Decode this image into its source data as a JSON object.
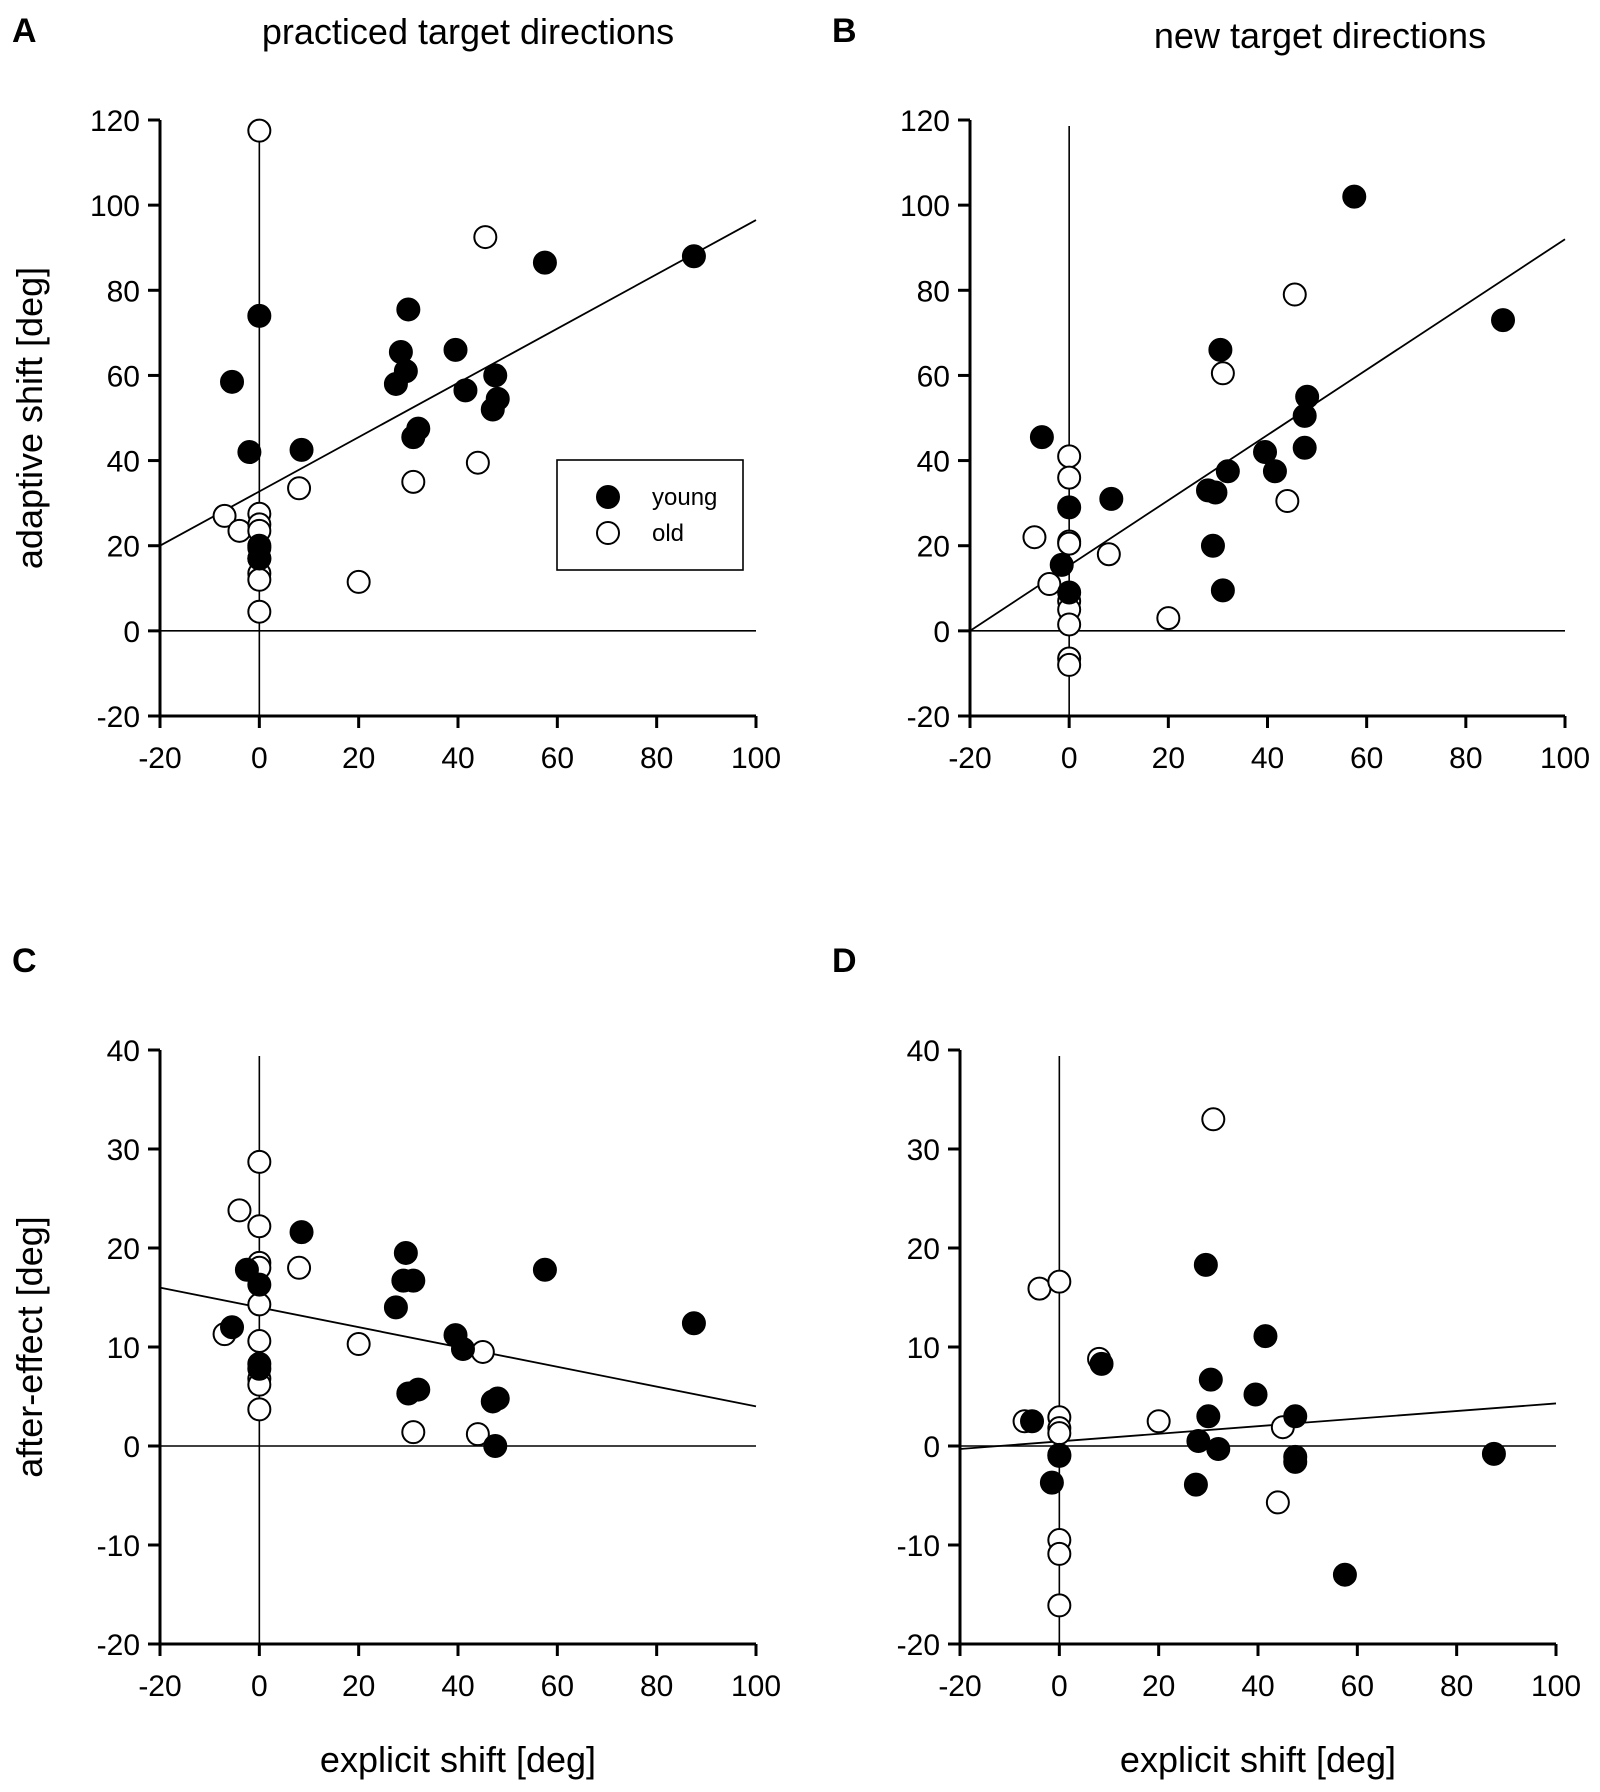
{
  "chart_data": [
    {
      "panel": "A",
      "type": "scatter",
      "title": "practiced target directions",
      "xlabel": "",
      "ylabel": "adaptive shift [deg]",
      "xlim": [
        -20,
        100
      ],
      "ylim": [
        -20,
        120
      ],
      "xticks": [
        -20,
        0,
        20,
        40,
        60,
        80,
        100
      ],
      "yticks": [
        -20,
        0,
        20,
        40,
        60,
        80,
        100,
        120
      ],
      "legend": {
        "position": "right-middle",
        "entries": [
          {
            "name": "young",
            "style": "filled"
          },
          {
            "name": "old",
            "style": "open"
          }
        ]
      },
      "fit_line": {
        "x": [
          -20,
          100
        ],
        "y": [
          20,
          96.5
        ]
      },
      "series": [
        {
          "name": "young",
          "points": [
            [
              -5.5,
              58.5
            ],
            [
              0,
              74
            ],
            [
              -2,
              42
            ],
            [
              8.5,
              42.5
            ],
            [
              28.5,
              65.5
            ],
            [
              30,
              75.5
            ],
            [
              29.5,
              61
            ],
            [
              27.5,
              58
            ],
            [
              31,
              45.5
            ],
            [
              32,
              47.5
            ],
            [
              39.5,
              66
            ],
            [
              41.5,
              56.5
            ],
            [
              47.5,
              60
            ],
            [
              48,
              54.5
            ],
            [
              47,
              52
            ],
            [
              57.5,
              86.5
            ],
            [
              87.5,
              88
            ],
            [
              0,
              20
            ],
            [
              0,
              17
            ]
          ]
        },
        {
          "name": "old",
          "points": [
            [
              0,
              117.5
            ],
            [
              -7,
              27
            ],
            [
              -4,
              23.5
            ],
            [
              0,
              27.5
            ],
            [
              0,
              25
            ],
            [
              0,
              23.5
            ],
            [
              0,
              19.5
            ],
            [
              0,
              17
            ],
            [
              0,
              13.5
            ],
            [
              0,
              12
            ],
            [
              0,
              4.5
            ],
            [
              8,
              33.5
            ],
            [
              20,
              11.5
            ],
            [
              31,
              35
            ],
            [
              44,
              39.5
            ],
            [
              45.5,
              92.5
            ]
          ]
        }
      ]
    },
    {
      "panel": "B",
      "type": "scatter",
      "title": "new target directions",
      "xlabel": "",
      "ylabel": "",
      "xlim": [
        -20,
        100
      ],
      "ylim": [
        -20,
        120
      ],
      "xticks": [
        -20,
        0,
        20,
        40,
        60,
        80,
        100
      ],
      "yticks": [
        -20,
        0,
        20,
        40,
        60,
        80,
        100,
        120
      ],
      "fit_line": {
        "x": [
          -20,
          100
        ],
        "y": [
          0,
          92
        ]
      },
      "series": [
        {
          "name": "young",
          "points": [
            [
              -5.5,
              45.5
            ],
            [
              0,
              29
            ],
            [
              -1.5,
              15.5
            ],
            [
              0,
              9
            ],
            [
              8.5,
              31
            ],
            [
              28,
              33
            ],
            [
              29.5,
              32.5
            ],
            [
              30.5,
              66
            ],
            [
              29,
              20
            ],
            [
              31,
              9.5
            ],
            [
              32,
              37.5
            ],
            [
              39.5,
              42
            ],
            [
              41.5,
              37.5
            ],
            [
              47.5,
              50.5
            ],
            [
              48,
              55
            ],
            [
              47.5,
              43
            ],
            [
              57.5,
              102
            ],
            [
              87.5,
              73
            ]
          ]
        },
        {
          "name": "old",
          "points": [
            [
              -7,
              22
            ],
            [
              -4,
              11
            ],
            [
              0,
              41
            ],
            [
              0,
              36
            ],
            [
              0,
              21
            ],
            [
              0,
              20.5
            ],
            [
              0,
              7
            ],
            [
              0,
              5
            ],
            [
              0,
              1.5
            ],
            [
              0,
              -6.5
            ],
            [
              0,
              -8
            ],
            [
              8,
              18
            ],
            [
              20,
              3
            ],
            [
              31,
              60.5
            ],
            [
              44,
              30.5
            ],
            [
              45.5,
              79
            ]
          ]
        }
      ]
    },
    {
      "panel": "C",
      "type": "scatter",
      "title": "",
      "xlabel": "explicit shift [deg]",
      "ylabel": "after-effect [deg]",
      "xlim": [
        -20,
        100
      ],
      "ylim": [
        -20,
        40
      ],
      "xticks": [
        -20,
        0,
        20,
        40,
        60,
        80,
        100
      ],
      "yticks": [
        -20,
        -10,
        0,
        10,
        20,
        30,
        40
      ],
      "fit_line": {
        "x": [
          -20,
          100
        ],
        "y": [
          16,
          4
        ]
      },
      "series": [
        {
          "name": "young",
          "points": [
            [
              -5.5,
              12
            ],
            [
              -2.5,
              17.8
            ],
            [
              0,
              16.3
            ],
            [
              0,
              8.3
            ],
            [
              0,
              7.8
            ],
            [
              8.5,
              21.6
            ],
            [
              29.5,
              19.5
            ],
            [
              29,
              16.7
            ],
            [
              31,
              16.7
            ],
            [
              27.5,
              14
            ],
            [
              30,
              5.3
            ],
            [
              32,
              5.7
            ],
            [
              39.5,
              11.2
            ],
            [
              41,
              9.8
            ],
            [
              47,
              4.5
            ],
            [
              48,
              4.8
            ],
            [
              47.5,
              0
            ],
            [
              57.5,
              17.8
            ],
            [
              87.5,
              12.4
            ]
          ]
        },
        {
          "name": "old",
          "points": [
            [
              -7,
              11.3
            ],
            [
              -4,
              23.8
            ],
            [
              0,
              28.7
            ],
            [
              0,
              22.2
            ],
            [
              0,
              18.5
            ],
            [
              0,
              18
            ],
            [
              0,
              14.3
            ],
            [
              0,
              10.6
            ],
            [
              0,
              6.8
            ],
            [
              0,
              6.2
            ],
            [
              0,
              3.7
            ],
            [
              8,
              18
            ],
            [
              20,
              10.3
            ],
            [
              31,
              1.4
            ],
            [
              44,
              1.2
            ],
            [
              45,
              9.5
            ]
          ]
        }
      ]
    },
    {
      "panel": "D",
      "type": "scatter",
      "title": "",
      "xlabel": "explicit shift [deg]",
      "ylabel": "",
      "xlim": [
        -20,
        100
      ],
      "ylim": [
        -20,
        40
      ],
      "xticks": [
        -20,
        0,
        20,
        40,
        60,
        80,
        100
      ],
      "yticks": [
        -20,
        -10,
        0,
        10,
        20,
        30,
        40
      ],
      "fit_line": {
        "x": [
          -20,
          100
        ],
        "y": [
          -0.3,
          4.3
        ]
      },
      "series": [
        {
          "name": "young",
          "points": [
            [
              -5.5,
              2.5
            ],
            [
              -1.5,
              -3.7
            ],
            [
              0,
              -1
            ],
            [
              8.5,
              8.3
            ],
            [
              29.5,
              18.3
            ],
            [
              30.5,
              6.7
            ],
            [
              30,
              3
            ],
            [
              28,
              0.5
            ],
            [
              27.5,
              -3.9
            ],
            [
              32,
              -0.3
            ],
            [
              39.5,
              5.2
            ],
            [
              41.5,
              11.1
            ],
            [
              47.5,
              3
            ],
            [
              47.5,
              -1.6
            ],
            [
              47.5,
              -1.1
            ],
            [
              57.5,
              -13
            ],
            [
              87.5,
              -0.8
            ]
          ]
        },
        {
          "name": "old",
          "points": [
            [
              -7,
              2.5
            ],
            [
              -4,
              15.9
            ],
            [
              0,
              16.6
            ],
            [
              0,
              2.9
            ],
            [
              0,
              1.8
            ],
            [
              0,
              1.3
            ],
            [
              0,
              -0.9
            ],
            [
              0,
              -9.5
            ],
            [
              0,
              -10.9
            ],
            [
              0,
              -16.1
            ],
            [
              8,
              8.8
            ],
            [
              20,
              2.5
            ],
            [
              31,
              33
            ],
            [
              44,
              -5.7
            ],
            [
              45,
              1.9
            ]
          ]
        }
      ]
    }
  ]
}
